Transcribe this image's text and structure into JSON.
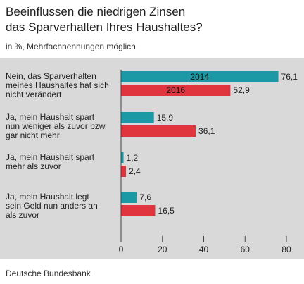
{
  "title_lines": [
    "Beeinflussen die niedrigen Zinsen",
    "das Sparverhalten Ihres Haushaltes?"
  ],
  "subtitle": "in %, Mehrfachnennungen möglich",
  "source": "Deutsche Bundesbank",
  "colors": {
    "series_2014": "#1b9aa5",
    "series_2016": "#e0343f",
    "plot_background": "#d9d9d9",
    "axis": "#444444"
  },
  "chart_data": {
    "type": "bar",
    "orientation": "horizontal",
    "title": "Beeinflussen die niedrigen Zinsen das Sparverhalten Ihres Haushaltes?",
    "subtitle": "in %, Mehrfachnennungen möglich",
    "categories": [
      [
        "Nein, das Sparverhalten",
        "meines Haushaltes hat sich",
        "nicht verändert"
      ],
      [
        "Ja, mein Haushalt spart",
        "nun weniger als zuvor bzw.",
        "gar nicht mehr"
      ],
      [
        "Ja, mein Haushalt spart",
        "mehr als zuvor"
      ],
      [
        "Ja, mein Haushalt legt",
        "sein Geld nun anders an",
        "als zuvor"
      ]
    ],
    "series": [
      {
        "name": "2014",
        "values": [
          76.1,
          15.9,
          1.2,
          7.6
        ],
        "labels": [
          "76,1",
          "15,9",
          "1,2",
          "7,6"
        ]
      },
      {
        "name": "2016",
        "values": [
          52.9,
          36.1,
          2.4,
          16.5
        ],
        "labels": [
          "52,9",
          "36,1",
          "2,4",
          "16,5"
        ]
      }
    ],
    "xlim": [
      0,
      80
    ],
    "ticks": [
      0,
      20,
      40,
      60,
      80
    ],
    "legend": "inside-first-bars",
    "grid": false
  }
}
